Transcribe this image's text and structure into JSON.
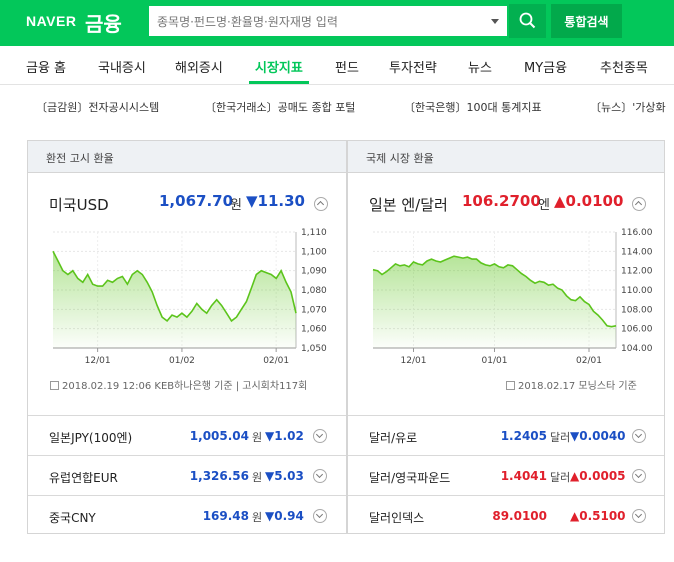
{
  "header": {
    "logo_naver": "NAVER",
    "logo_finance": "금융",
    "search_placeholder": "종목명·펀드명·환율명·원자재명 입력",
    "integrated_search_label": "통합검색",
    "brand_color": "#03c75a"
  },
  "nav": {
    "items": [
      {
        "label": "금융 홈"
      },
      {
        "label": "국내증시"
      },
      {
        "label": "해외증시"
      },
      {
        "label": "시장지표",
        "active": true
      },
      {
        "label": "펀드"
      },
      {
        "label": "투자전략"
      },
      {
        "label": "뉴스"
      },
      {
        "label": "MY금융"
      },
      {
        "label": "추천종목"
      }
    ]
  },
  "quick_links": [
    "〔금감원〕전자공시시스템",
    "〔한국거래소〕공매도 종합 포털",
    "〔한국은행〕100대 통계지표",
    "〔뉴스〕'가상화"
  ],
  "left_panel": {
    "header": "환전 고시 환율",
    "main": {
      "name": "미국USD",
      "value": "1,067.70",
      "unit": "원",
      "change": "▼11.30",
      "direction": "fall"
    },
    "source": "2018.02.19 12:06 KEB하나은행 기준 | 고시회차117회",
    "rows": [
      {
        "name": "일본JPY(100엔)",
        "value": "1,005.04",
        "unit": "원",
        "change": "▼1.02",
        "direction": "fall"
      },
      {
        "name": "유럽연합EUR",
        "value": "1,326.56",
        "unit": "원",
        "change": "▼5.03",
        "direction": "fall"
      },
      {
        "name": "중국CNY",
        "value": "169.48",
        "unit": "원",
        "change": "▼0.94",
        "direction": "fall"
      }
    ]
  },
  "right_panel": {
    "header": "국제 시장 환율",
    "main": {
      "name": "일본 엔/달러",
      "value": "106.2700",
      "unit": "엔",
      "change": "▲0.0100",
      "direction": "rise"
    },
    "source": "2018.02.17 모닝스타 기준",
    "rows": [
      {
        "name": "달러/유로",
        "value": "1.2405",
        "unit": "달러",
        "change": "▼0.0040",
        "direction": "fall"
      },
      {
        "name": "달러/영국파운드",
        "value": "1.4041",
        "unit": "달러",
        "change": "▲0.0005",
        "direction": "rise"
      },
      {
        "name": "달러인덱스",
        "value": "89.0100",
        "unit": "",
        "change": "▲0.5100",
        "direction": "rise"
      }
    ]
  },
  "chart_data": [
    {
      "type": "area",
      "series_color": "#5cc41c",
      "x_tick_labels": [
        "12/01",
        "01/02",
        "02/01"
      ],
      "y_tick_labels": [
        "1,110",
        "1,100",
        "1,090",
        "1,080",
        "1,070",
        "1,060",
        "1,050"
      ],
      "ylim": [
        1050,
        1110
      ],
      "y_ticks": [
        1110,
        1100,
        1090,
        1080,
        1070,
        1060,
        1050
      ],
      "x_tick_index": [
        9,
        26,
        45
      ],
      "values": [
        1100,
        1095,
        1090,
        1088,
        1090,
        1086,
        1084,
        1088,
        1083,
        1082,
        1082,
        1085,
        1084,
        1086,
        1087,
        1083,
        1088,
        1090,
        1088,
        1084,
        1079,
        1072,
        1066,
        1064,
        1067,
        1066,
        1068,
        1066,
        1069,
        1073,
        1070,
        1068,
        1072,
        1075,
        1072,
        1068,
        1064,
        1066,
        1070,
        1074,
        1081,
        1088,
        1090,
        1089,
        1088,
        1086,
        1090,
        1084,
        1079,
        1068
      ]
    },
    {
      "type": "area",
      "series_color": "#5cc41c",
      "x_tick_labels": [
        "12/01",
        "01/01",
        "02/01"
      ],
      "y_tick_labels": [
        "116.00",
        "114.00",
        "112.00",
        "110.00",
        "108.00",
        "106.00",
        "104.00"
      ],
      "ylim": [
        104,
        116
      ],
      "y_ticks": [
        116,
        114,
        112,
        110,
        108,
        106,
        104
      ],
      "x_tick_index": [
        9,
        27,
        48
      ],
      "values": [
        112.1,
        112.0,
        111.6,
        111.9,
        112.3,
        112.7,
        112.5,
        112.6,
        112.4,
        112.9,
        112.7,
        112.6,
        113.0,
        113.2,
        113.0,
        112.9,
        113.1,
        113.3,
        113.5,
        113.4,
        113.3,
        113.4,
        113.2,
        113.2,
        112.8,
        112.6,
        112.5,
        112.7,
        112.4,
        112.3,
        112.6,
        112.5,
        112.1,
        111.7,
        111.4,
        111.0,
        110.7,
        110.9,
        110.8,
        110.5,
        110.6,
        110.2,
        110.0,
        109.4,
        109.0,
        108.9,
        109.3,
        108.8,
        108.5,
        107.8,
        107.4,
        106.9,
        106.3,
        106.2,
        106.3
      ]
    }
  ]
}
